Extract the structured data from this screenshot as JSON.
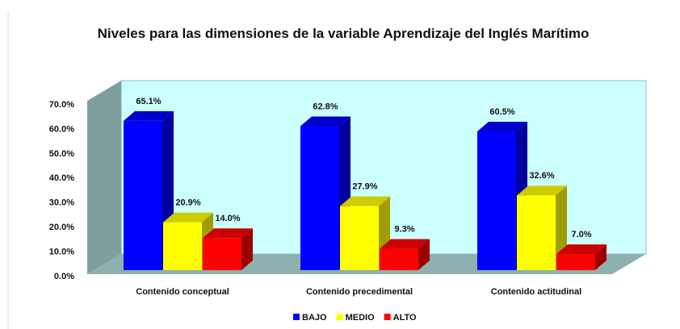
{
  "chart_data": {
    "type": "bar3d",
    "title": "Niveles para las dimensiones de la variable Aprendizaje del Inglés Marítimo",
    "categories": [
      "Contenido conceptual",
      "Contenido precedimental",
      "Contenido actitudinal"
    ],
    "series": [
      {
        "name": "BAJO",
        "color": "#0000ff",
        "values": [
          65.1,
          62.8,
          60.5
        ],
        "value_labels": [
          "65.1%",
          "62.8%",
          "60.5%"
        ]
      },
      {
        "name": "MEDIO",
        "color": "#ffff00",
        "values": [
          20.9,
          27.9,
          32.6
        ],
        "value_labels": [
          "20.9%",
          "27.9%",
          "32.6%"
        ]
      },
      {
        "name": "ALTO",
        "color": "#ff0000",
        "values": [
          14.0,
          9.3,
          7.0
        ],
        "value_labels": [
          "14.0%",
          "9.3%",
          "7.0%"
        ]
      }
    ],
    "ylim": [
      0,
      70
    ],
    "yticks": [
      {
        "value": 0,
        "label": "0.0%"
      },
      {
        "value": 10,
        "label": "10.0%"
      },
      {
        "value": 20,
        "label": "20.0%"
      },
      {
        "value": 30,
        "label": "30.0%"
      },
      {
        "value": 40,
        "label": "40.0%"
      },
      {
        "value": 50,
        "label": "50.0%"
      },
      {
        "value": 60,
        "label": "60.0%"
      },
      {
        "value": 70,
        "label": "70.0%"
      }
    ],
    "legend": "bottom"
  }
}
